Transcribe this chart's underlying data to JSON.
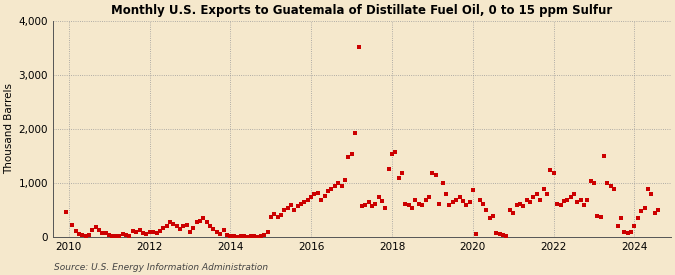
{
  "title": "Monthly U.S. Exports to Guatemala of Distillate Fuel Oil, 0 to 15 ppm Sulfur",
  "ylabel": "Thousand Barrels",
  "source": "Source: U.S. Energy Information Administration",
  "marker_color": "#cc0000",
  "background_color": "#f5e8cc",
  "plot_bg_color": "#f5e8cc",
  "ylim": [
    0,
    4000
  ],
  "yticks": [
    0,
    1000,
    2000,
    3000,
    4000
  ],
  "xlim_start": 2009.6,
  "xlim_end": 2024.9,
  "xticks": [
    2010,
    2012,
    2014,
    2016,
    2018,
    2020,
    2022,
    2024
  ],
  "dates": [
    2009.92,
    2010.08,
    2010.17,
    2010.25,
    2010.33,
    2010.42,
    2010.5,
    2010.58,
    2010.67,
    2010.75,
    2010.83,
    2010.92,
    2011.0,
    2011.08,
    2011.17,
    2011.25,
    2011.33,
    2011.42,
    2011.5,
    2011.58,
    2011.67,
    2011.75,
    2011.83,
    2011.92,
    2012.0,
    2012.08,
    2012.17,
    2012.25,
    2012.33,
    2012.42,
    2012.5,
    2012.58,
    2012.67,
    2012.75,
    2012.83,
    2012.92,
    2013.0,
    2013.08,
    2013.17,
    2013.25,
    2013.33,
    2013.42,
    2013.5,
    2013.58,
    2013.67,
    2013.75,
    2013.83,
    2013.92,
    2014.0,
    2014.08,
    2014.17,
    2014.25,
    2014.33,
    2014.42,
    2014.5,
    2014.58,
    2014.67,
    2014.75,
    2014.83,
    2014.92,
    2015.0,
    2015.08,
    2015.17,
    2015.25,
    2015.33,
    2015.42,
    2015.5,
    2015.58,
    2015.67,
    2015.75,
    2015.83,
    2015.92,
    2016.0,
    2016.08,
    2016.17,
    2016.25,
    2016.33,
    2016.42,
    2016.5,
    2016.58,
    2016.67,
    2016.75,
    2016.83,
    2016.92,
    2017.0,
    2017.08,
    2017.17,
    2017.25,
    2017.33,
    2017.42,
    2017.5,
    2017.58,
    2017.67,
    2017.75,
    2017.83,
    2017.92,
    2018.0,
    2018.08,
    2018.17,
    2018.25,
    2018.33,
    2018.42,
    2018.5,
    2018.58,
    2018.67,
    2018.75,
    2018.83,
    2018.92,
    2019.0,
    2019.08,
    2019.17,
    2019.25,
    2019.33,
    2019.42,
    2019.5,
    2019.58,
    2019.67,
    2019.75,
    2019.83,
    2019.92,
    2020.0,
    2020.08,
    2020.17,
    2020.25,
    2020.33,
    2020.42,
    2020.5,
    2020.58,
    2020.67,
    2020.75,
    2020.83,
    2020.92,
    2021.0,
    2021.08,
    2021.17,
    2021.25,
    2021.33,
    2021.42,
    2021.5,
    2021.58,
    2021.67,
    2021.75,
    2021.83,
    2021.92,
    2022.0,
    2022.08,
    2022.17,
    2022.25,
    2022.33,
    2022.42,
    2022.5,
    2022.58,
    2022.67,
    2022.75,
    2022.83,
    2022.92,
    2023.0,
    2023.08,
    2023.17,
    2023.25,
    2023.33,
    2023.42,
    2023.5,
    2023.58,
    2023.67,
    2023.75,
    2023.83,
    2023.92,
    2024.0,
    2024.08,
    2024.17,
    2024.25,
    2024.33,
    2024.42,
    2024.5,
    2024.58
  ],
  "values": [
    450,
    220,
    100,
    50,
    30,
    20,
    40,
    130,
    180,
    120,
    70,
    60,
    40,
    20,
    10,
    5,
    50,
    30,
    20,
    100,
    80,
    130,
    70,
    50,
    80,
    90,
    70,
    110,
    160,
    190,
    280,
    240,
    190,
    140,
    190,
    220,
    90,
    160,
    270,
    290,
    340,
    270,
    190,
    140,
    90,
    50,
    120,
    25,
    15,
    8,
    3,
    8,
    15,
    3,
    8,
    12,
    3,
    15,
    25,
    85,
    360,
    430,
    370,
    410,
    490,
    540,
    580,
    490,
    570,
    610,
    640,
    680,
    730,
    790,
    810,
    690,
    750,
    840,
    890,
    940,
    990,
    940,
    1060,
    1480,
    1530,
    1920,
    3520,
    570,
    590,
    640,
    570,
    610,
    740,
    670,
    540,
    1260,
    1530,
    1580,
    1090,
    1190,
    610,
    590,
    540,
    690,
    610,
    590,
    690,
    740,
    1190,
    1140,
    610,
    990,
    790,
    590,
    640,
    690,
    740,
    670,
    590,
    640,
    870,
    45,
    690,
    610,
    490,
    340,
    390,
    75,
    45,
    25,
    15,
    490,
    440,
    590,
    610,
    570,
    690,
    640,
    740,
    790,
    690,
    890,
    790,
    1230,
    1190,
    610,
    590,
    670,
    690,
    740,
    790,
    640,
    690,
    590,
    690,
    1040,
    990,
    390,
    370,
    1490,
    990,
    940,
    890,
    190,
    340,
    95,
    75,
    95,
    190,
    340,
    470,
    540,
    890,
    790,
    440,
    500
  ]
}
